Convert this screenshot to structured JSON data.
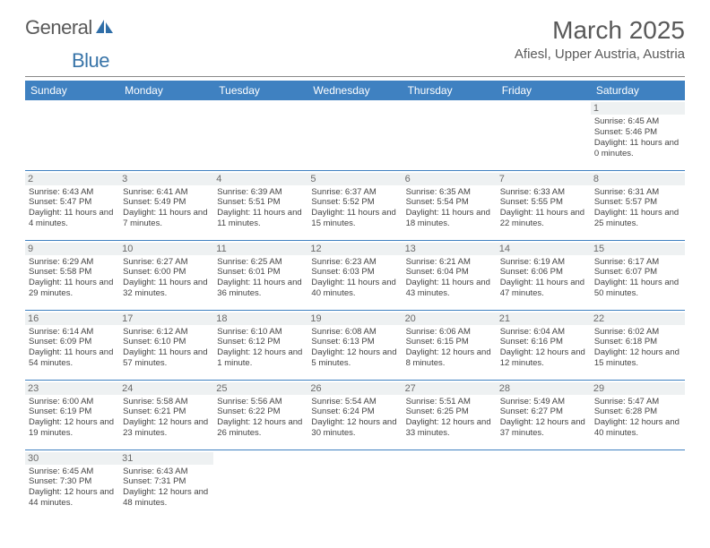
{
  "logo": {
    "text1": "General",
    "text2": "Blue"
  },
  "title": "March 2025",
  "location": "Afiesl, Upper Austria, Austria",
  "dayHeaders": [
    "Sunday",
    "Monday",
    "Tuesday",
    "Wednesday",
    "Thursday",
    "Friday",
    "Saturday"
  ],
  "colors": {
    "headerBg": "#3f81c1",
    "headerText": "#ffffff",
    "border": "#3f81c1",
    "daybg": "#eef1f2"
  },
  "weeks": [
    [
      null,
      null,
      null,
      null,
      null,
      null,
      {
        "n": "1",
        "sr": "Sunrise: 6:45 AM",
        "ss": "Sunset: 5:46 PM",
        "dl": "Daylight: 11 hours and 0 minutes."
      }
    ],
    [
      {
        "n": "2",
        "sr": "Sunrise: 6:43 AM",
        "ss": "Sunset: 5:47 PM",
        "dl": "Daylight: 11 hours and 4 minutes."
      },
      {
        "n": "3",
        "sr": "Sunrise: 6:41 AM",
        "ss": "Sunset: 5:49 PM",
        "dl": "Daylight: 11 hours and 7 minutes."
      },
      {
        "n": "4",
        "sr": "Sunrise: 6:39 AM",
        "ss": "Sunset: 5:51 PM",
        "dl": "Daylight: 11 hours and 11 minutes."
      },
      {
        "n": "5",
        "sr": "Sunrise: 6:37 AM",
        "ss": "Sunset: 5:52 PM",
        "dl": "Daylight: 11 hours and 15 minutes."
      },
      {
        "n": "6",
        "sr": "Sunrise: 6:35 AM",
        "ss": "Sunset: 5:54 PM",
        "dl": "Daylight: 11 hours and 18 minutes."
      },
      {
        "n": "7",
        "sr": "Sunrise: 6:33 AM",
        "ss": "Sunset: 5:55 PM",
        "dl": "Daylight: 11 hours and 22 minutes."
      },
      {
        "n": "8",
        "sr": "Sunrise: 6:31 AM",
        "ss": "Sunset: 5:57 PM",
        "dl": "Daylight: 11 hours and 25 minutes."
      }
    ],
    [
      {
        "n": "9",
        "sr": "Sunrise: 6:29 AM",
        "ss": "Sunset: 5:58 PM",
        "dl": "Daylight: 11 hours and 29 minutes."
      },
      {
        "n": "10",
        "sr": "Sunrise: 6:27 AM",
        "ss": "Sunset: 6:00 PM",
        "dl": "Daylight: 11 hours and 32 minutes."
      },
      {
        "n": "11",
        "sr": "Sunrise: 6:25 AM",
        "ss": "Sunset: 6:01 PM",
        "dl": "Daylight: 11 hours and 36 minutes."
      },
      {
        "n": "12",
        "sr": "Sunrise: 6:23 AM",
        "ss": "Sunset: 6:03 PM",
        "dl": "Daylight: 11 hours and 40 minutes."
      },
      {
        "n": "13",
        "sr": "Sunrise: 6:21 AM",
        "ss": "Sunset: 6:04 PM",
        "dl": "Daylight: 11 hours and 43 minutes."
      },
      {
        "n": "14",
        "sr": "Sunrise: 6:19 AM",
        "ss": "Sunset: 6:06 PM",
        "dl": "Daylight: 11 hours and 47 minutes."
      },
      {
        "n": "15",
        "sr": "Sunrise: 6:17 AM",
        "ss": "Sunset: 6:07 PM",
        "dl": "Daylight: 11 hours and 50 minutes."
      }
    ],
    [
      {
        "n": "16",
        "sr": "Sunrise: 6:14 AM",
        "ss": "Sunset: 6:09 PM",
        "dl": "Daylight: 11 hours and 54 minutes."
      },
      {
        "n": "17",
        "sr": "Sunrise: 6:12 AM",
        "ss": "Sunset: 6:10 PM",
        "dl": "Daylight: 11 hours and 57 minutes."
      },
      {
        "n": "18",
        "sr": "Sunrise: 6:10 AM",
        "ss": "Sunset: 6:12 PM",
        "dl": "Daylight: 12 hours and 1 minute."
      },
      {
        "n": "19",
        "sr": "Sunrise: 6:08 AM",
        "ss": "Sunset: 6:13 PM",
        "dl": "Daylight: 12 hours and 5 minutes."
      },
      {
        "n": "20",
        "sr": "Sunrise: 6:06 AM",
        "ss": "Sunset: 6:15 PM",
        "dl": "Daylight: 12 hours and 8 minutes."
      },
      {
        "n": "21",
        "sr": "Sunrise: 6:04 AM",
        "ss": "Sunset: 6:16 PM",
        "dl": "Daylight: 12 hours and 12 minutes."
      },
      {
        "n": "22",
        "sr": "Sunrise: 6:02 AM",
        "ss": "Sunset: 6:18 PM",
        "dl": "Daylight: 12 hours and 15 minutes."
      }
    ],
    [
      {
        "n": "23",
        "sr": "Sunrise: 6:00 AM",
        "ss": "Sunset: 6:19 PM",
        "dl": "Daylight: 12 hours and 19 minutes."
      },
      {
        "n": "24",
        "sr": "Sunrise: 5:58 AM",
        "ss": "Sunset: 6:21 PM",
        "dl": "Daylight: 12 hours and 23 minutes."
      },
      {
        "n": "25",
        "sr": "Sunrise: 5:56 AM",
        "ss": "Sunset: 6:22 PM",
        "dl": "Daylight: 12 hours and 26 minutes."
      },
      {
        "n": "26",
        "sr": "Sunrise: 5:54 AM",
        "ss": "Sunset: 6:24 PM",
        "dl": "Daylight: 12 hours and 30 minutes."
      },
      {
        "n": "27",
        "sr": "Sunrise: 5:51 AM",
        "ss": "Sunset: 6:25 PM",
        "dl": "Daylight: 12 hours and 33 minutes."
      },
      {
        "n": "28",
        "sr": "Sunrise: 5:49 AM",
        "ss": "Sunset: 6:27 PM",
        "dl": "Daylight: 12 hours and 37 minutes."
      },
      {
        "n": "29",
        "sr": "Sunrise: 5:47 AM",
        "ss": "Sunset: 6:28 PM",
        "dl": "Daylight: 12 hours and 40 minutes."
      }
    ],
    [
      {
        "n": "30",
        "sr": "Sunrise: 6:45 AM",
        "ss": "Sunset: 7:30 PM",
        "dl": "Daylight: 12 hours and 44 minutes."
      },
      {
        "n": "31",
        "sr": "Sunrise: 6:43 AM",
        "ss": "Sunset: 7:31 PM",
        "dl": "Daylight: 12 hours and 48 minutes."
      },
      null,
      null,
      null,
      null,
      null
    ]
  ]
}
